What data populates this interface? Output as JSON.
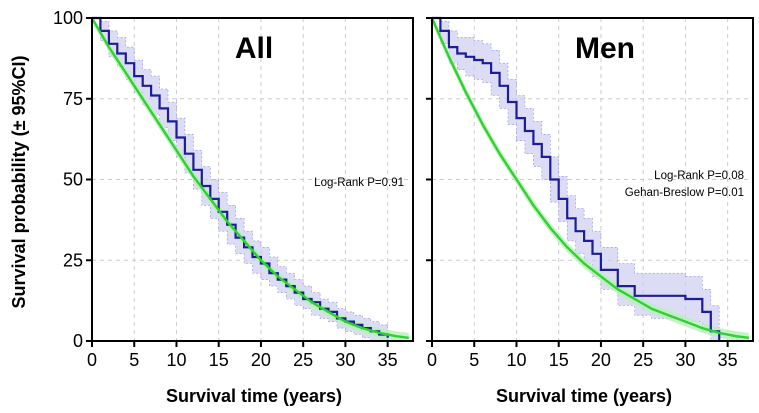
{
  "colors": {
    "study": "#1c1c9c",
    "study_ci": "#c9caf0",
    "reference": "#2fd12f",
    "reference_ci": "#b7f0b7",
    "grid": "#cccccc"
  },
  "ylabel": "Survival probability (± 95%CI)",
  "chart_data": [
    {
      "type": "line",
      "title": "All",
      "xlabel": "Survival time (years)",
      "ylabel": "Survival probability (± 95%CI)",
      "xlim": [
        0,
        38
      ],
      "ylim": [
        0,
        100
      ],
      "xticks": [
        "0",
        "5",
        "10",
        "15",
        "20",
        "25",
        "30",
        "35"
      ],
      "yticks": [
        "0",
        "25",
        "50",
        "75",
        "100"
      ],
      "grid": true,
      "annotations": [
        "Log-Rank P=0.91"
      ],
      "series": [
        {
          "role": "study",
          "step": true,
          "x": [
            0,
            1,
            2,
            3,
            4,
            5,
            6,
            7,
            8,
            9,
            10,
            11,
            12,
            13,
            14,
            15,
            16,
            17,
            18,
            19,
            20,
            21,
            22,
            23,
            24,
            25,
            26,
            27,
            28,
            29,
            30,
            31,
            32,
            33,
            34,
            35
          ],
          "y": [
            100,
            96,
            92,
            89,
            86,
            82,
            79,
            76,
            72,
            68,
            63,
            58,
            53,
            48,
            44,
            40,
            36,
            32,
            29,
            26,
            24,
            21,
            19,
            17,
            15,
            13,
            12,
            10,
            9,
            7,
            6,
            5,
            4,
            3,
            2,
            1
          ],
          "ci_lower": [
            100,
            93,
            88,
            85,
            81,
            77,
            73,
            70,
            66,
            62,
            57,
            52,
            47,
            42,
            38,
            34,
            30,
            27,
            24,
            21,
            19,
            17,
            15,
            13,
            11,
            10,
            8,
            7,
            6,
            4,
            3,
            2,
            1,
            0,
            0,
            0
          ],
          "ci_upper": [
            100,
            99,
            96,
            94,
            91,
            87,
            84,
            82,
            78,
            74,
            69,
            64,
            59,
            54,
            50,
            46,
            42,
            38,
            34,
            31,
            29,
            26,
            23,
            21,
            19,
            17,
            15,
            13,
            12,
            10,
            9,
            8,
            7,
            6,
            5,
            4
          ]
        },
        {
          "role": "reference",
          "step": false,
          "x": [
            0,
            2,
            4,
            6,
            8,
            10,
            12,
            14,
            16,
            18,
            20,
            22,
            24,
            26,
            28,
            30,
            32,
            34,
            36,
            37.5
          ],
          "y": [
            100,
            91,
            83,
            75,
            67,
            59,
            51,
            44,
            37,
            31,
            25,
            20,
            16,
            12,
            9,
            6,
            4,
            2.5,
            1.5,
            1
          ],
          "ci_half_width": 1.5
        }
      ]
    },
    {
      "type": "line",
      "title": "Men",
      "xlabel": "Survival time (years)",
      "ylabel": "Survival probability (± 95%CI)",
      "xlim": [
        0,
        38
      ],
      "ylim": [
        0,
        100
      ],
      "xticks": [
        "0",
        "5",
        "10",
        "15",
        "20",
        "25",
        "30",
        "35"
      ],
      "yticks": [
        "0",
        "25",
        "50",
        "75",
        "100"
      ],
      "grid": true,
      "annotations": [
        "Log-Rank P=0.08",
        "Gehan-Breslow P=0.01"
      ],
      "series": [
        {
          "role": "study",
          "step": true,
          "x": [
            0,
            1,
            2,
            3,
            4,
            5,
            6,
            7,
            8,
            9,
            10,
            11,
            12,
            13,
            14,
            15,
            16,
            17,
            18,
            19,
            20,
            22,
            24,
            26,
            28,
            30,
            32,
            33,
            34
          ],
          "y": [
            100,
            96,
            91,
            89,
            88,
            87,
            86,
            83,
            79,
            74,
            69,
            65,
            61,
            57,
            50,
            44,
            38,
            34,
            31,
            27,
            22,
            17,
            14,
            14,
            14,
            13,
            9,
            3,
            0
          ],
          "ci_lower": [
            100,
            92,
            86,
            84,
            82,
            81,
            80,
            76,
            72,
            67,
            62,
            58,
            54,
            50,
            43,
            37,
            31,
            27,
            24,
            20,
            16,
            11,
            8,
            7,
            7,
            6,
            3,
            0,
            0
          ],
          "ci_upper": [
            100,
            99,
            96,
            94,
            94,
            93,
            92,
            90,
            86,
            81,
            76,
            72,
            68,
            64,
            57,
            51,
            45,
            41,
            38,
            34,
            29,
            24,
            21,
            21,
            21,
            20,
            16,
            11,
            5
          ]
        },
        {
          "role": "reference",
          "step": false,
          "x": [
            0,
            2,
            4,
            6,
            8,
            10,
            12,
            14,
            16,
            18,
            20,
            22,
            24,
            26,
            28,
            30,
            32,
            34,
            36,
            37.5
          ],
          "y": [
            100,
            88,
            77,
            67,
            58,
            50,
            42,
            35,
            29,
            24,
            20,
            16,
            13,
            10,
            8,
            6,
            4,
            2.5,
            1.5,
            1
          ],
          "ci_half_width": 1.5
        }
      ]
    }
  ]
}
